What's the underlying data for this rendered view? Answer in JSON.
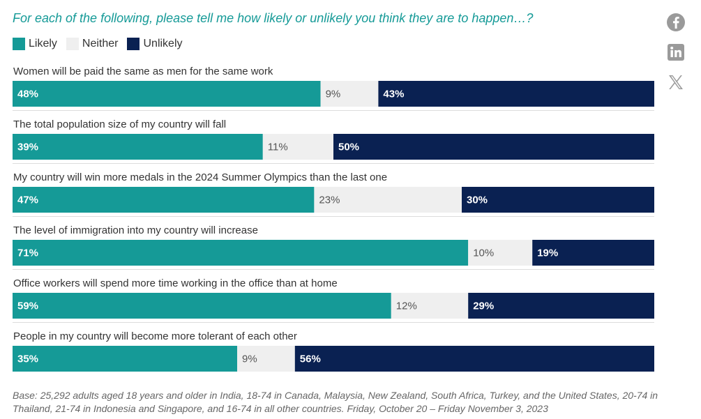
{
  "title": "For each of the following, please tell me how likely or unlikely you think they are to happen…?",
  "footnote": "Base: 25,292 adults aged 18 years and older in India, 18-74 in Canada, Malaysia, New Zealand, South Africa, Turkey, and the United States, 20-74 in Thailand, 21-74 in Indonesia and Singapore, and 16-74 in all other countries. Friday, October 20 – Friday November 3, 2023",
  "colors": {
    "likely": "#159a97",
    "neither": "#efefef",
    "unlikely": "#0a2152",
    "title": "#159a97",
    "divider": "#dcdcdc"
  },
  "legend": [
    {
      "label": "Likely",
      "color": "#159a97"
    },
    {
      "label": "Neither",
      "color": "#efefef"
    },
    {
      "label": "Unlikely",
      "color": "#0a2152"
    }
  ],
  "social": [
    "facebook-icon",
    "linkedin-icon",
    "x-icon"
  ],
  "chart_data": {
    "type": "bar",
    "orientation": "horizontal",
    "stacked": true,
    "legend_position": "top-left",
    "xlim": [
      0,
      100
    ],
    "categories": [
      "Women will be paid the same as men for the same work",
      "The total population size of my country will fall",
      "My country will win more medals in the 2024 Summer Olympics than the last one",
      "The level of immigration into my country will increase",
      "Office workers will spend more time working in the office than at home",
      "People in my country will become more tolerant of each other"
    ],
    "series": [
      {
        "name": "Likely",
        "values": [
          48,
          39,
          47,
          71,
          59,
          35
        ]
      },
      {
        "name": "Neither",
        "values": [
          9,
          11,
          23,
          10,
          12,
          9
        ]
      },
      {
        "name": "Unlikely",
        "values": [
          43,
          50,
          30,
          19,
          29,
          56
        ]
      }
    ]
  }
}
